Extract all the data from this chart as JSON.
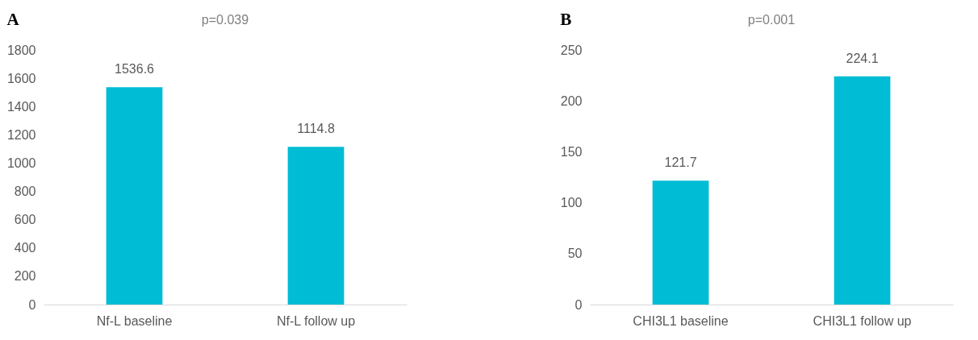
{
  "chart_data": [
    {
      "type": "bar",
      "title": "A",
      "annotations": [
        "p=0.039"
      ],
      "categories": [
        "Nf-L baseline",
        "Nf-L follow up"
      ],
      "values": [
        1536.6,
        1114.8
      ],
      "color": "#00bcd4",
      "ylim": [
        0,
        1800
      ],
      "yticks": [
        0,
        200,
        400,
        600,
        800,
        1000,
        1200,
        1400,
        1600,
        1800
      ],
      "data_labels": true
    },
    {
      "type": "bar",
      "title": "B",
      "annotations": [
        "p=0.001"
      ],
      "categories": [
        "CHI3L1 baseline",
        "CHI3L1 follow up"
      ],
      "values": [
        121.7,
        224.1
      ],
      "color": "#00bcd4",
      "ylim": [
        0,
        250
      ],
      "yticks": [
        0,
        50,
        100,
        150,
        200,
        250
      ],
      "data_labels": true
    }
  ]
}
